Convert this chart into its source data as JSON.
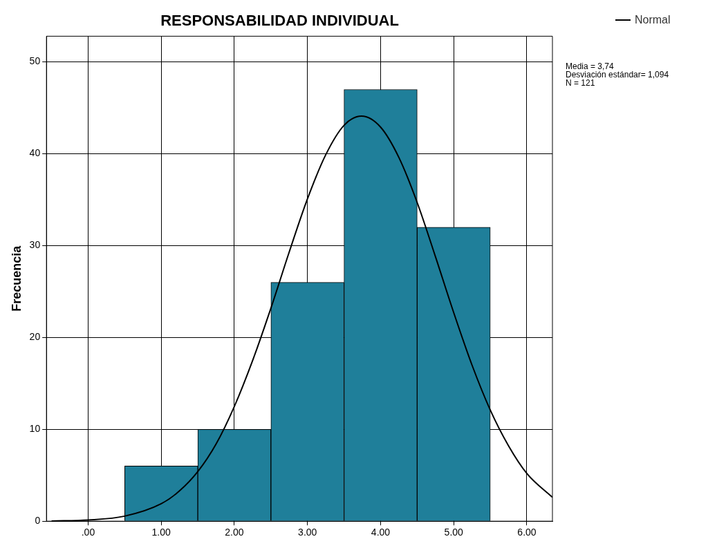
{
  "chart_data": {
    "type": "histogram",
    "title": "RESPONSABILIDAD INDIVIDUAL",
    "ylabel": "Frecuencia",
    "bins": [
      0.5,
      1.5,
      2.5,
      3.5,
      4.5,
      5.5
    ],
    "values": [
      6,
      10,
      26,
      47,
      32
    ],
    "color": "#1f7f9a",
    "series": [
      {
        "name": "Normal",
        "type": "line",
        "color": "#000000",
        "x": [
          -0.5,
          0,
          0.5,
          1,
          1.25,
          1.5,
          1.75,
          2,
          2.25,
          2.5,
          2.75,
          3,
          3.25,
          3.5,
          3.74,
          4,
          4.25,
          4.5,
          4.75,
          5,
          5.25,
          5.5,
          5.75,
          6,
          6.35
        ],
        "values": [
          0.02,
          0.13,
          0.55,
          1.9,
          3.3,
          5.4,
          8.4,
          12.5,
          17.5,
          23.2,
          29.3,
          35.1,
          39.9,
          43.1,
          44.1,
          42.9,
          39.6,
          34.7,
          28.8,
          22.7,
          17,
          12.1,
          8.2,
          5.2,
          2.6
        ]
      }
    ],
    "xlim": [
      -0.57,
      6.35
    ],
    "xticks": [
      {
        "value": 0,
        "label": ".00"
      },
      {
        "value": 1,
        "label": "1.00"
      },
      {
        "value": 2,
        "label": "2.00"
      },
      {
        "value": 3,
        "label": "3.00"
      },
      {
        "value": 4,
        "label": "4.00"
      },
      {
        "value": 5,
        "label": "5.00"
      },
      {
        "value": 6,
        "label": "6.00"
      }
    ],
    "ylim": [
      0,
      52.8
    ],
    "yticks": [
      0,
      10,
      20,
      30,
      40,
      50
    ],
    "grid": true,
    "legend": "top right",
    "marker": "none",
    "line_style": "solid",
    "annotations": [
      "Media = 3,74",
      "Desviación estándar= 1,094",
      "N = 121"
    ]
  }
}
